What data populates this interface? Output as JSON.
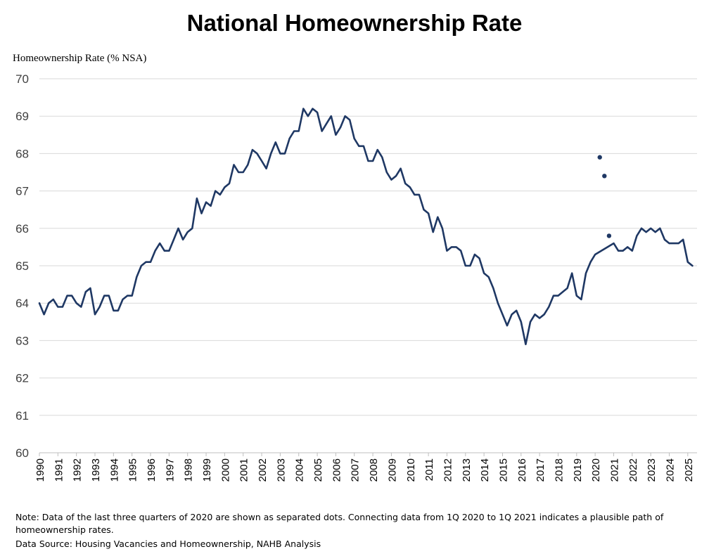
{
  "chart_data": {
    "type": "line",
    "title": "National Homeownership Rate",
    "ylabel": "Homeownership Rate (% NSA)",
    "xlabel": "",
    "ylim": [
      60,
      70
    ],
    "yticks": [
      "60",
      "61",
      "62",
      "63",
      "64",
      "65",
      "66",
      "67",
      "68",
      "69",
      "70"
    ],
    "xticks": [
      "1990",
      "1991",
      "1992",
      "1993",
      "1994",
      "1995",
      "1996",
      "1997",
      "1998",
      "1999",
      "2000",
      "2001",
      "2002",
      "2003",
      "2004",
      "2005",
      "2006",
      "2007",
      "2008",
      "2009",
      "2010",
      "2011",
      "2012",
      "2013",
      "2014",
      "2015",
      "2016",
      "2017",
      "2018",
      "2019",
      "2020",
      "2021",
      "2022",
      "2023",
      "2024",
      "2025"
    ],
    "xlim": [
      1990.0,
      2025.5
    ],
    "grid": true,
    "line_color": "#1f3864",
    "series": [
      {
        "x": [
          1990.0,
          1990.25,
          1990.5,
          1990.75,
          1991.0,
          1991.25,
          1991.5,
          1991.75,
          1992.0,
          1992.25,
          1992.5,
          1992.75,
          1993.0,
          1993.25,
          1993.5,
          1993.75,
          1994.0,
          1994.25,
          1994.5,
          1994.75,
          1995.0,
          1995.25,
          1995.5,
          1995.75,
          1996.0,
          1996.25,
          1996.5,
          1996.75,
          1997.0,
          1997.25,
          1997.5,
          1997.75,
          1998.0,
          1998.25,
          1998.5,
          1998.75,
          1999.0,
          1999.25,
          1999.5,
          1999.75,
          2000.0,
          2000.25,
          2000.5,
          2000.75,
          2001.0,
          2001.25,
          2001.5,
          2001.75,
          2002.0,
          2002.25,
          2002.5,
          2002.75,
          2003.0,
          2003.25,
          2003.5,
          2003.75,
          2004.0,
          2004.25,
          2004.5,
          2004.75,
          2005.0,
          2005.25,
          2005.5,
          2005.75,
          2006.0,
          2006.25,
          2006.5,
          2006.75,
          2007.0,
          2007.25,
          2007.5,
          2007.75,
          2008.0,
          2008.25,
          2008.5,
          2008.75,
          2009.0,
          2009.25,
          2009.5,
          2009.75,
          2010.0,
          2010.25,
          2010.5,
          2010.75,
          2011.0,
          2011.25,
          2011.5,
          2011.75,
          2012.0,
          2012.25,
          2012.5,
          2012.75,
          2013.0,
          2013.25,
          2013.5,
          2013.75,
          2014.0,
          2014.25,
          2014.5,
          2014.75,
          2015.0,
          2015.25,
          2015.5,
          2015.75,
          2016.0,
          2016.25,
          2016.5,
          2016.75,
          2017.0,
          2017.25,
          2017.5,
          2017.75,
          2018.0,
          2018.25,
          2018.5,
          2018.75,
          2019.0,
          2019.25,
          2019.5,
          2019.75,
          2020.0,
          2021.0,
          2021.25,
          2021.5,
          2021.75,
          2022.0,
          2022.25,
          2022.5,
          2022.75,
          2023.0,
          2023.25,
          2023.5,
          2023.75,
          2024.0,
          2024.25,
          2024.5,
          2024.75,
          2025.0,
          2025.25
        ],
        "y": [
          64.0,
          63.7,
          64.0,
          64.1,
          63.9,
          63.9,
          64.2,
          64.2,
          64.0,
          63.9,
          64.3,
          64.4,
          63.7,
          63.9,
          64.2,
          64.2,
          63.8,
          63.8,
          64.1,
          64.2,
          64.2,
          64.7,
          65.0,
          65.1,
          65.1,
          65.4,
          65.6,
          65.4,
          65.4,
          65.7,
          66.0,
          65.7,
          65.9,
          66.0,
          66.8,
          66.4,
          66.7,
          66.6,
          67.0,
          66.9,
          67.1,
          67.2,
          67.7,
          67.5,
          67.5,
          67.7,
          68.1,
          68.0,
          67.8,
          67.6,
          68.0,
          68.3,
          68.0,
          68.0,
          68.4,
          68.6,
          68.6,
          69.2,
          69.0,
          69.2,
          69.1,
          68.6,
          68.8,
          69.0,
          68.5,
          68.7,
          69.0,
          68.9,
          68.4,
          68.2,
          68.2,
          67.8,
          67.8,
          68.1,
          67.9,
          67.5,
          67.3,
          67.4,
          67.6,
          67.2,
          67.1,
          66.9,
          66.9,
          66.5,
          66.4,
          65.9,
          66.3,
          66.0,
          65.4,
          65.5,
          65.5,
          65.4,
          65.0,
          65.0,
          65.3,
          65.2,
          64.8,
          64.7,
          64.4,
          64.0,
          63.7,
          63.4,
          63.7,
          63.8,
          63.5,
          62.9,
          63.5,
          63.7,
          63.6,
          63.7,
          63.9,
          64.2,
          64.2,
          64.3,
          64.4,
          64.8,
          64.2,
          64.1,
          64.8,
          65.1,
          65.3,
          65.6,
          65.4,
          65.4,
          65.5,
          65.4,
          65.8,
          66.0,
          65.9,
          66.0,
          65.9,
          66.0,
          65.7,
          65.6,
          65.6,
          65.6,
          65.7,
          65.1,
          65.0
        ]
      }
    ],
    "separated_points": {
      "x": [
        2020.25,
        2020.5,
        2020.75
      ],
      "y": [
        67.9,
        67.4,
        65.8
      ]
    }
  },
  "notes": {
    "line1": "Note: Data of the last three quarters of 2020 are shown as separated dots. Connecting data from 1Q 2020 to 1Q 2021 indicates a plausible path of",
    "line2": "homeownership rates.",
    "source": "Data Source: Housing Vacancies and Homeownership, NAHB Analysis"
  }
}
